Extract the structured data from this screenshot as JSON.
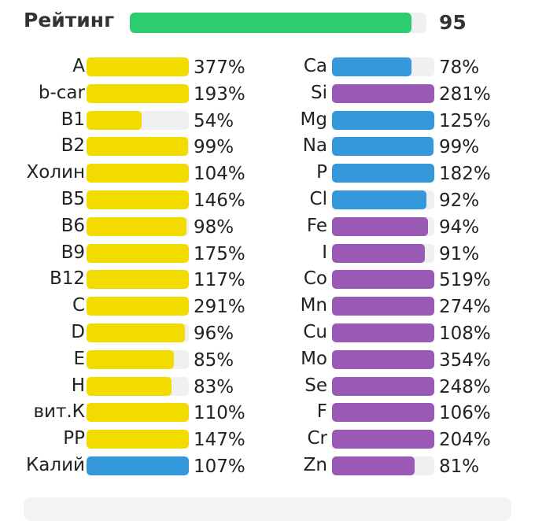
{
  "rating": {
    "label": "Рейтинг",
    "value": "95",
    "level": 0.95,
    "color": "#2ecc71"
  },
  "colors": {
    "vitamin": "#f2dc00",
    "macro": "#3498db",
    "micro": "#9b59b6",
    "track": "#eef0f2"
  },
  "left_column": [
    {
      "name": "A",
      "pct": "377%",
      "level": 1,
      "kind": "vitamin"
    },
    {
      "name": "b-car",
      "pct": "193%",
      "level": 1,
      "kind": "vitamin"
    },
    {
      "name": "B1",
      "pct": "54%",
      "level": 0.54,
      "kind": "vitamin"
    },
    {
      "name": "B2",
      "pct": "99%",
      "level": 0.99,
      "kind": "vitamin"
    },
    {
      "name": "Холин",
      "pct": "104%",
      "level": 1,
      "kind": "vitamin"
    },
    {
      "name": "B5",
      "pct": "146%",
      "level": 1,
      "kind": "vitamin"
    },
    {
      "name": "B6",
      "pct": "98%",
      "level": 0.98,
      "kind": "vitamin"
    },
    {
      "name": "B9",
      "pct": "175%",
      "level": 1,
      "kind": "vitamin"
    },
    {
      "name": "B12",
      "pct": "117%",
      "level": 1,
      "kind": "vitamin"
    },
    {
      "name": "C",
      "pct": "291%",
      "level": 1,
      "kind": "vitamin"
    },
    {
      "name": "D",
      "pct": "96%",
      "level": 0.96,
      "kind": "vitamin"
    },
    {
      "name": "E",
      "pct": "85%",
      "level": 0.85,
      "kind": "vitamin"
    },
    {
      "name": "H",
      "pct": "83%",
      "level": 0.83,
      "kind": "vitamin"
    },
    {
      "name": "вит.К",
      "pct": "110%",
      "level": 1,
      "kind": "vitamin"
    },
    {
      "name": "PP",
      "pct": "147%",
      "level": 1,
      "kind": "vitamin"
    },
    {
      "name": "Калий",
      "pct": "107%",
      "level": 1,
      "kind": "macro"
    }
  ],
  "right_column": [
    {
      "name": "Ca",
      "pct": "78%",
      "level": 0.78,
      "kind": "macro"
    },
    {
      "name": "Si",
      "pct": "281%",
      "level": 1,
      "kind": "micro"
    },
    {
      "name": "Mg",
      "pct": "125%",
      "level": 1,
      "kind": "macro"
    },
    {
      "name": "Na",
      "pct": "99%",
      "level": 0.99,
      "kind": "macro"
    },
    {
      "name": "P",
      "pct": "182%",
      "level": 1,
      "kind": "macro"
    },
    {
      "name": "Cl",
      "pct": "92%",
      "level": 0.92,
      "kind": "macro"
    },
    {
      "name": "Fe",
      "pct": "94%",
      "level": 0.94,
      "kind": "micro"
    },
    {
      "name": "I",
      "pct": "91%",
      "level": 0.91,
      "kind": "micro"
    },
    {
      "name": "Co",
      "pct": "519%",
      "level": 1,
      "kind": "micro"
    },
    {
      "name": "Mn",
      "pct": "274%",
      "level": 1,
      "kind": "micro"
    },
    {
      "name": "Cu",
      "pct": "108%",
      "level": 1,
      "kind": "micro"
    },
    {
      "name": "Mo",
      "pct": "354%",
      "level": 1,
      "kind": "micro"
    },
    {
      "name": "Se",
      "pct": "248%",
      "level": 1,
      "kind": "micro"
    },
    {
      "name": "F",
      "pct": "106%",
      "level": 1,
      "kind": "micro"
    },
    {
      "name": "Cr",
      "pct": "204%",
      "level": 1,
      "kind": "micro"
    },
    {
      "name": "Zn",
      "pct": "81%",
      "level": 0.81,
      "kind": "micro"
    }
  ]
}
